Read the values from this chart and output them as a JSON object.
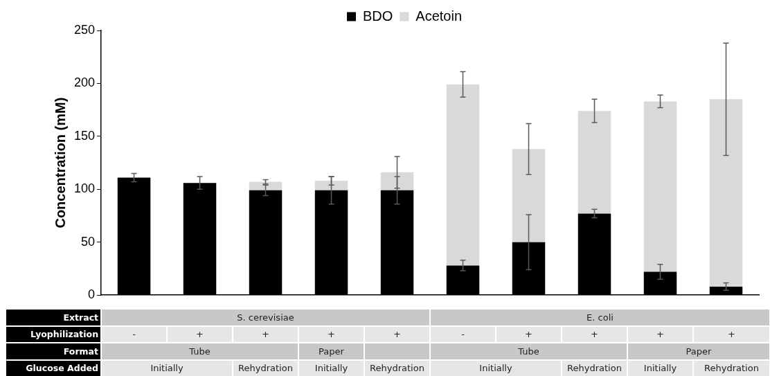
{
  "chart_data": {
    "type": "bar",
    "stacked": true,
    "ylabel": "Concentration (mM)",
    "categories": [
      null,
      null,
      null,
      null,
      null,
      null,
      null,
      null,
      null,
      null
    ],
    "series": [
      {
        "name": "BDO",
        "color": "#000000",
        "values": [
          111,
          106,
          99,
          99,
          99,
          28,
          50,
          77,
          22,
          8
        ],
        "errors": [
          4,
          6,
          5,
          13,
          13,
          5,
          26,
          4,
          7,
          3.5
        ]
      },
      {
        "name": "Acetoin",
        "color": "#d9d9d9",
        "values": [
          0,
          0,
          8,
          9,
          17,
          171,
          88,
          97,
          161,
          177
        ],
        "errors": [
          null,
          null,
          2,
          4,
          15,
          12,
          24,
          11,
          6,
          53
        ]
      }
    ],
    "ylim": [
      0,
      250
    ],
    "yticks": [
      0,
      50,
      100,
      150,
      200,
      250
    ],
    "grid": false,
    "legend": "top",
    "annotations": [
      "Extract",
      "S. cerevisiae",
      "E. coli",
      "Lyophilization",
      "-",
      "+",
      "+",
      "+",
      "+",
      "-",
      "+",
      "+",
      "+",
      "+",
      "Format",
      "Tube",
      "Paper",
      "Tube",
      "Paper",
      "Glucose Added",
      "Initially",
      "Rehydration",
      "Initially",
      "Rehydration",
      "Initially",
      "Rehydration",
      "Initially",
      "Rehydration"
    ]
  }
}
